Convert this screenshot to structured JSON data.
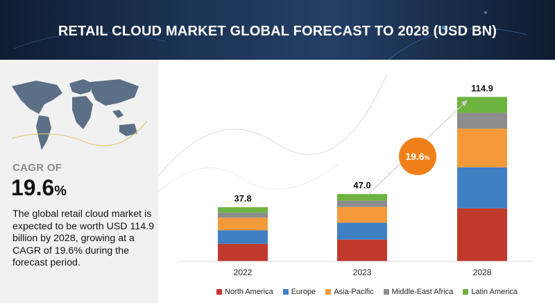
{
  "header": {
    "title": "RETAIL CLOUD MARKET GLOBAL FORECAST TO 2028 (USD BN)"
  },
  "left": {
    "cagr_label": "CAGR OF",
    "cagr_value": "19.6",
    "cagr_unit": "%",
    "description": "The global retail cloud market is expected to be worth USD 114.9 billion by 2028, growing at a CAGR of 19.6% during the forecast period."
  },
  "bubble": {
    "value": "19.6",
    "unit": "%"
  },
  "colors": {
    "north_america": "#c0392b",
    "europe": "#3f7fc4",
    "asia_pacific": "#f59a3a",
    "middle_east_africa": "#8c8c8c",
    "latin_america": "#6db33f"
  },
  "chart_data": {
    "type": "bar",
    "stacked": true,
    "categories": [
      "2022",
      "2023",
      "2028"
    ],
    "totals": [
      "37.8",
      "47.0",
      "114.9"
    ],
    "series": [
      {
        "name": "North America",
        "values": [
          12.2,
          15.2,
          37.0
        ]
      },
      {
        "name": "Europe",
        "values": [
          9.5,
          11.8,
          28.7
        ]
      },
      {
        "name": "Asia-Pacific",
        "values": [
          8.8,
          11.0,
          27.0
        ]
      },
      {
        "name": "Middle-East Africa",
        "values": [
          3.6,
          4.4,
          11.0
        ]
      },
      {
        "name": "Latin America",
        "values": [
          3.7,
          4.6,
          11.2
        ]
      }
    ],
    "ylim": [
      0,
      125
    ],
    "grid": false,
    "legend_position": "bottom"
  }
}
